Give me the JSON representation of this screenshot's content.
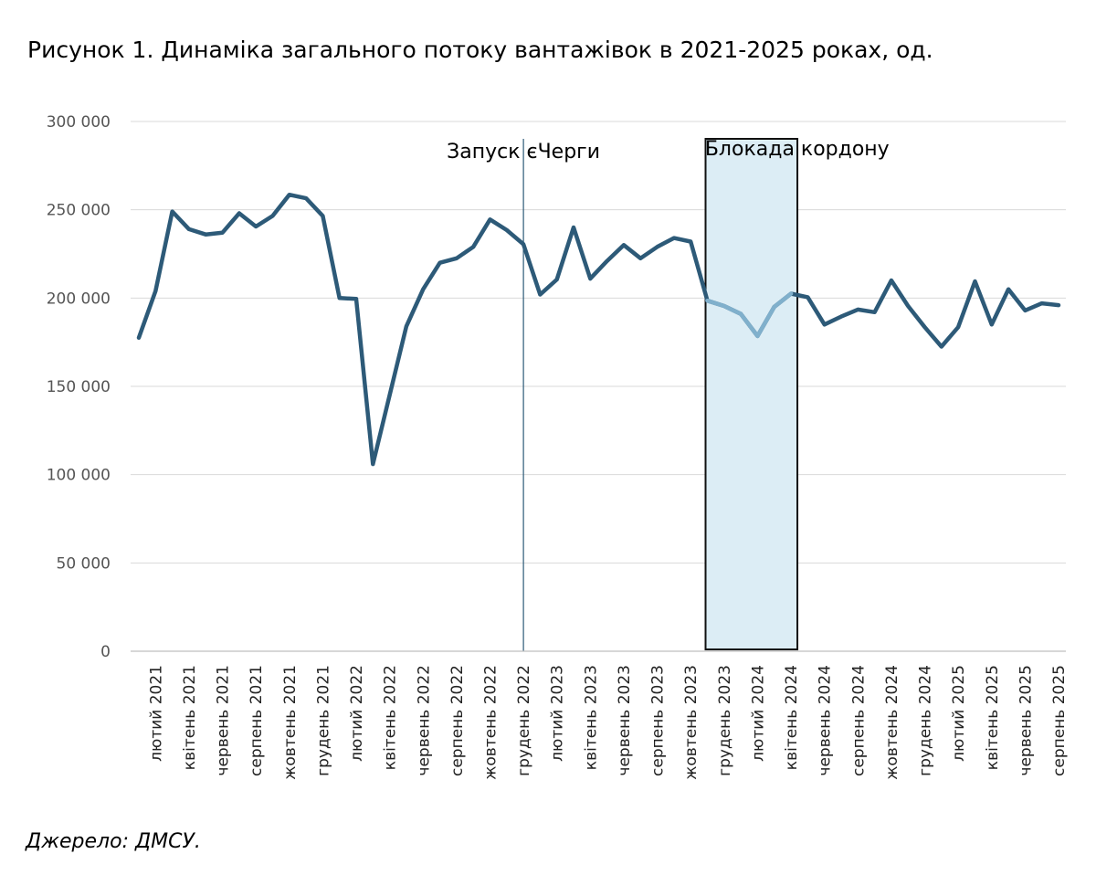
{
  "title": "Рисунок 1. Динаміка загального потоку вантажівок в 2021-2025 роках, од.",
  "source": "Джерело: ДМСУ.",
  "chart_data": {
    "type": "line",
    "line_color": "#2d5a78",
    "highlight_line_color": "#80b0cc",
    "highlight_fill": "#dcedf5",
    "ylim": [
      0,
      300000
    ],
    "y_ticks": [
      0,
      50000,
      100000,
      150000,
      200000,
      250000,
      300000
    ],
    "y_tick_labels": [
      "0",
      "50 000",
      "100 000",
      "150 000",
      "200 000",
      "250 000",
      "300 000"
    ],
    "x": [
      "січень 2021",
      "лютий 2021",
      "березень 2021",
      "квітень 2021",
      "травень 2021",
      "червень 2021",
      "липень 2021",
      "серпень 2021",
      "вересень 2021",
      "жовтень 2021",
      "листопад 2021",
      "грудень 2021",
      "січень 2022",
      "лютий 2022",
      "березень 2022",
      "квітень 2022",
      "травень 2022",
      "червень 2022",
      "липень 2022",
      "серпень 2022",
      "вересень 2022",
      "жовтень 2022",
      "листопад 2022",
      "грудень 2022",
      "січень 2023",
      "лютий 2023",
      "березень 2023",
      "квітень 2023",
      "травень 2023",
      "червень 2023",
      "липень 2023",
      "серпень 2023",
      "вересень 2023",
      "жовтень 2023",
      "листопад 2023",
      "грудень 2023",
      "січень 2024",
      "лютий 2024",
      "березень 2024",
      "квітень 2024",
      "травень 2024",
      "червень 2024",
      "липень 2024",
      "серпень 2024",
      "вересень 2024",
      "жовтень 2024",
      "листопад 2024",
      "грудень 2024",
      "січень 2025",
      "лютий 2025",
      "березень 2025",
      "квітень 2025",
      "травень 2025",
      "червень 2025",
      "липень 2025",
      "серпень 2025"
    ],
    "tick_labels": [
      "лютий 2021",
      "квітень 2021",
      "червень 2021",
      "серпень 2021",
      "жовтень 2021",
      "грудень 2021",
      "лютий 2022",
      "квітень 2022",
      "червень 2022",
      "серпень 2022",
      "жовтень 2022",
      "грудень 2022",
      "лютий 2023",
      "квітень 2023",
      "червень 2023",
      "серпень 2023",
      "жовтень 2023",
      "грудень 2023",
      "лютий 2024",
      "квітень 2024",
      "червень 2024",
      "серпень 2024",
      "жовтень 2024",
      "грудень 2024",
      "лютий 2025",
      "квітень 2025",
      "червень 2025",
      "серпень 2025"
    ],
    "values": [
      177500,
      204000,
      249000,
      239000,
      236000,
      237000,
      248000,
      240500,
      246500,
      258500,
      256500,
      246500,
      200000,
      199500,
      106000,
      145000,
      184000,
      205000,
      220000,
      222500,
      229000,
      244500,
      238500,
      230500,
      202000,
      210500,
      240000,
      211000,
      221000,
      230000,
      222500,
      229000,
      234000,
      232000,
      198500,
      195500,
      191000,
      178500,
      195000,
      202500,
      200500,
      185000,
      189500,
      193500,
      192000,
      210000,
      195500,
      183500,
      172500,
      183500,
      209500,
      185000,
      205000,
      193000,
      197000,
      196000
    ],
    "annotations": [
      {
        "type": "vline",
        "x": "грудень 2022",
        "label": "Запуск єЧерги"
      },
      {
        "type": "band",
        "x_start": "листопад 2023",
        "x_end": "квітень 2024",
        "label": "Блокада кордону"
      }
    ]
  }
}
